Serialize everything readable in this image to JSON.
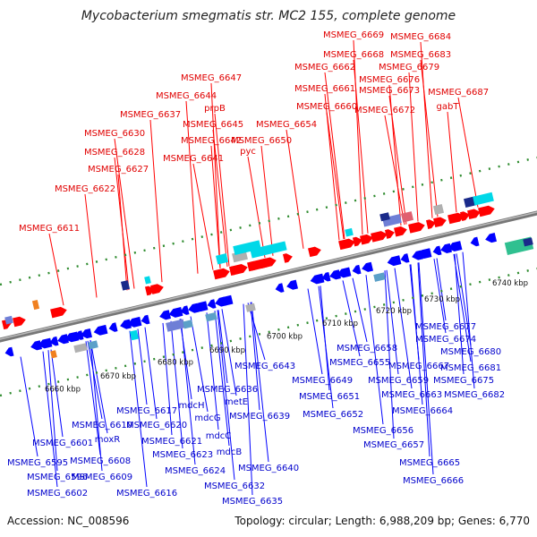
{
  "title": "Mycobacterium smegmatis str. MC2 155, complete genome",
  "footer": {
    "accession": "Accession: NC_008596",
    "summary": "Topology: circular; Length: 6,988,209 bp; Genes: 6,770"
  },
  "colors": {
    "forward": "#ff0000",
    "reverse": "#0000ff",
    "backbone": "#888888",
    "tick": "#2e8b2e"
  },
  "kbp_ticks": [
    "6660 kbp",
    "6670 kbp",
    "6680 kbp",
    "6690 kbp",
    "6700 kbp",
    "6710 kbp",
    "6720 kbp",
    "6730 kbp",
    "6740 kbp"
  ],
  "top_labels": [
    "MSMEG_6669",
    "MSMEG_6684",
    "MSMEG_6668",
    "MSMEG_6683",
    "MSMEG_6662",
    "MSMEG_6679",
    "MSMEG_6676",
    "MSMEG_6661",
    "MSMEG_6673",
    "MSMEG_6687",
    "MSMEG_6647",
    "MSMEG_6644",
    "prpB",
    "MSMEG_6660",
    "MSMEG_6672",
    "gabT",
    "MSMEG_6637",
    "MSMEG_6645",
    "MSMEG_6654",
    "MSMEG_6630",
    "MSMEG_6642",
    "MSMEG_6650",
    "MSMEG_6628",
    "pyc",
    "MSMEG_6641",
    "MSMEG_6627",
    "MSMEG_6622",
    "MSMEG_6611"
  ],
  "bottom_labels": [
    "MSMEG_6677",
    "MSMEG_6674",
    "MSMEG_6680",
    "MSMEG_6681",
    "MSMEG_6675",
    "MSMEG_6682",
    "MSMEG_6658",
    "MSMEG_6655",
    "MSMEG_6667",
    "MSMEG_6659",
    "MSMEG_6649",
    "MSMEG_6663",
    "MSMEG_6651",
    "MSMEG_6664",
    "MSMEG_6652",
    "MSMEG_6656",
    "MSMEG_6657",
    "MSMEG_6665",
    "MSMEG_6666",
    "MSMEG_6643",
    "MSMEG_6636",
    "mdcH",
    "metE",
    "mdcG",
    "MSMEG_6639",
    "mdcC",
    "mdcB",
    "MSMEG_6640",
    "MSMEG_6617",
    "MSMEG_6620",
    "MSMEG_6610",
    "moxR",
    "MSMEG_6621",
    "MSMEG_6623",
    "MSMEG_6624",
    "MSMEG_6632",
    "MSMEG_6635",
    "MSMEG_6601",
    "MSMEG_6608",
    "MSMEG_6595",
    "MSMEG_6596",
    "MSMEG_6609",
    "MSMEG_6602",
    "MSMEG_6616"
  ]
}
